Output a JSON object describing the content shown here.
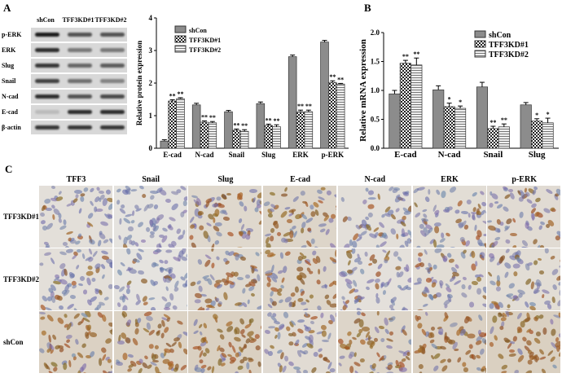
{
  "panels": {
    "a": "A",
    "b": "B",
    "c": "C"
  },
  "blot": {
    "lanes": [
      "shCon",
      "TFF3KD#1",
      "TFF3KD#2"
    ],
    "rows": [
      {
        "label": "p-ERK",
        "intensity": [
          1.0,
          0.7,
          0.7
        ]
      },
      {
        "label": "ERK",
        "intensity": [
          0.9,
          0.5,
          0.5
        ]
      },
      {
        "label": "Slug",
        "intensity": [
          0.85,
          0.6,
          0.65
        ]
      },
      {
        "label": "Snail",
        "intensity": [
          0.8,
          0.55,
          0.45
        ]
      },
      {
        "label": "N-cad",
        "intensity": [
          0.9,
          0.7,
          0.75
        ]
      },
      {
        "label": "E-cad",
        "intensity": [
          0.15,
          0.9,
          0.9
        ]
      },
      {
        "label": "β-actin",
        "intensity": [
          0.85,
          0.85,
          0.85
        ]
      }
    ]
  },
  "chart_data": [
    {
      "type": "bar",
      "ylabel": "Relative protein expression",
      "ylim": [
        0,
        4
      ],
      "yticks": [
        "0",
        "1",
        "2",
        "3",
        "4"
      ],
      "categories": [
        "E-cad",
        "N-cad",
        "Snail",
        "Slug",
        "ERK",
        "p-ERK"
      ],
      "legend_position": "top-left",
      "series": [
        {
          "name": "shCon",
          "values": [
            0.22,
            1.33,
            1.12,
            1.37,
            2.81,
            3.26
          ],
          "errors": [
            0.04,
            0.05,
            0.04,
            0.05,
            0.05,
            0.05
          ],
          "sig": [
            "",
            "",
            "",
            "",
            "",
            ""
          ]
        },
        {
          "name": "TFF3KD#1",
          "values": [
            1.45,
            0.8,
            0.55,
            0.7,
            1.12,
            2.02
          ],
          "errors": [
            0.04,
            0.04,
            0.04,
            0.04,
            0.05,
            0.05
          ],
          "sig": [
            "**",
            "**",
            "**",
            "**",
            "**",
            "**"
          ]
        },
        {
          "name": "TFF3KD#2",
          "values": [
            1.52,
            0.78,
            0.52,
            0.66,
            1.12,
            1.97
          ],
          "errors": [
            0.03,
            0.04,
            0.05,
            0.06,
            0.05,
            0.02
          ],
          "sig": [
            "**",
            "**",
            "**",
            "**",
            "**",
            "**"
          ]
        }
      ]
    },
    {
      "type": "bar",
      "ylabel": "Relative mRNA expression",
      "ylim": [
        0,
        2
      ],
      "yticks": [
        "0.0",
        "0.5",
        "1.0",
        "1.5",
        "2.0"
      ],
      "categories": [
        "E-cad",
        "N-cad",
        "Snail",
        "Slug"
      ],
      "legend_position": "top-right",
      "series": [
        {
          "name": "shCon",
          "values": [
            0.94,
            1.01,
            1.06,
            0.75
          ],
          "errors": [
            0.06,
            0.07,
            0.08,
            0.04
          ],
          "sig": [
            "",
            "",
            "",
            ""
          ]
        },
        {
          "name": "TFF3KD#1",
          "values": [
            1.47,
            0.72,
            0.34,
            0.47
          ],
          "errors": [
            0.05,
            0.06,
            0.04,
            0.04
          ],
          "sig": [
            "**",
            "*",
            "**",
            "*"
          ]
        },
        {
          "name": "TFF3KD#2",
          "values": [
            1.44,
            0.69,
            0.37,
            0.44
          ],
          "errors": [
            0.12,
            0.04,
            0.05,
            0.08
          ],
          "sig": [
            "**",
            "*",
            "**",
            "*"
          ]
        }
      ]
    }
  ],
  "ihc": {
    "columns": [
      "TFF3",
      "Snail",
      "Slug",
      "E-cad",
      "N-cad",
      "ERK",
      "p-ERK"
    ],
    "rows": [
      "TFF3KD#1",
      "TFF3KD#2",
      "shCon"
    ],
    "stain": [
      [
        0.2,
        0.05,
        0.5,
        0.6,
        0.2,
        0.3,
        0.35
      ],
      [
        0.2,
        0.05,
        0.45,
        0.6,
        0.15,
        0.3,
        0.3
      ],
      [
        0.75,
        0.7,
        0.8,
        0.35,
        0.6,
        0.75,
        0.8
      ]
    ]
  },
  "colors": {
    "bar_shCon": "#8c8c8c",
    "bar_kd1": "#ffffff",
    "bar_kd2": "#d0d0d0",
    "stain_brown": "#8a5a2e",
    "nuclei_blue": "#6b73a8"
  }
}
